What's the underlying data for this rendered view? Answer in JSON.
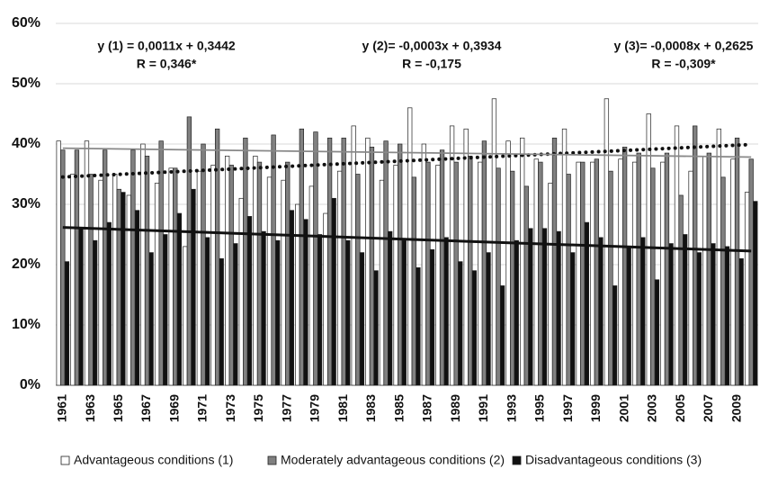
{
  "chart_data": {
    "type": "bar",
    "categories": [
      "1961",
      null,
      "1963",
      null,
      "1965",
      null,
      "1967",
      null,
      "1969",
      null,
      "1971",
      null,
      "1973",
      null,
      "1975",
      null,
      "1977",
      null,
      "1979",
      null,
      "1981",
      null,
      "1983",
      null,
      "1985",
      null,
      "1987",
      null,
      "1989",
      null,
      "1991",
      null,
      "1993",
      null,
      "1995",
      null,
      "1997",
      null,
      "1999",
      null,
      "2001",
      null,
      "2003",
      null,
      "2005",
      null,
      "2007",
      null,
      "2009",
      null
    ],
    "series": [
      {
        "name": "Advantageous conditions (1)",
        "color": "#ffffff",
        "values": [
          40.5,
          35,
          40.5,
          34,
          35,
          31.5,
          40,
          33.5,
          36,
          23,
          35.5,
          36.5,
          38,
          31,
          38,
          34.5,
          34,
          30,
          33,
          28.5,
          35.5,
          43,
          41,
          34,
          36.5,
          46,
          40,
          36.5,
          43,
          42.5,
          37,
          47.5,
          40.5,
          41,
          37.5,
          33.5,
          42.5,
          37,
          37,
          47.5,
          37.5,
          37,
          45,
          37,
          43,
          35.5,
          38,
          42.5,
          37.5,
          32
        ]
      },
      {
        "name": "Moderately advantageous conditions (2)",
        "color": "#808080",
        "values": [
          39,
          39,
          35,
          39,
          32.5,
          39,
          38,
          40.5,
          36,
          44.5,
          40,
          42.5,
          36.5,
          41,
          37,
          41.5,
          37,
          42.5,
          42,
          41,
          41,
          35,
          39.5,
          40.5,
          40,
          34.5,
          37,
          39,
          37,
          38,
          40.5,
          36,
          35.5,
          33,
          37,
          41,
          35,
          37,
          37.5,
          35.5,
          39.5,
          38.5,
          36,
          38.5,
          31.5,
          43,
          38.5,
          34.5,
          41,
          37.5
        ]
      },
      {
        "name": "Disadvantageous conditions (3)",
        "color": "#111111",
        "values": [
          20.5,
          26,
          24,
          27,
          32,
          29,
          22,
          25,
          28.5,
          32.5,
          24.5,
          21,
          23.5,
          28,
          25.5,
          24,
          29,
          27.5,
          25,
          31,
          24,
          22,
          19,
          25.5,
          24,
          19.5,
          22.5,
          24.5,
          20.5,
          19,
          22,
          16.5,
          24,
          26,
          26,
          25.5,
          22,
          27,
          24.5,
          16.5,
          23,
          24.5,
          17.5,
          23.5,
          25,
          22,
          23.5,
          23,
          21,
          30.5
        ]
      }
    ],
    "trendlines": [
      {
        "equation": "y (1) = 0,0011x + 0,3442",
        "r": "R = 0,346*",
        "slope": 0.11,
        "intercept": 34.42
      },
      {
        "equation": "y (2)= -0,0003x + 0,3934",
        "r": "R = -0,175",
        "slope": -0.03,
        "intercept": 39.34
      },
      {
        "equation": "y (3)= -0,0008x + 0,2625",
        "r": "R = -0,309*",
        "slope": -0.08,
        "intercept": 26.25
      }
    ],
    "ylim": [
      0,
      60
    ],
    "yticks": [
      {
        "value": 0,
        "label": "0%"
      },
      {
        "value": 10,
        "label": "10%"
      },
      {
        "value": 20,
        "label": "20%"
      },
      {
        "value": 30,
        "label": "30%"
      },
      {
        "value": 40,
        "label": "40%"
      },
      {
        "value": 50,
        "label": "50%"
      },
      {
        "value": 60,
        "label": "60%"
      }
    ],
    "grid": true
  }
}
